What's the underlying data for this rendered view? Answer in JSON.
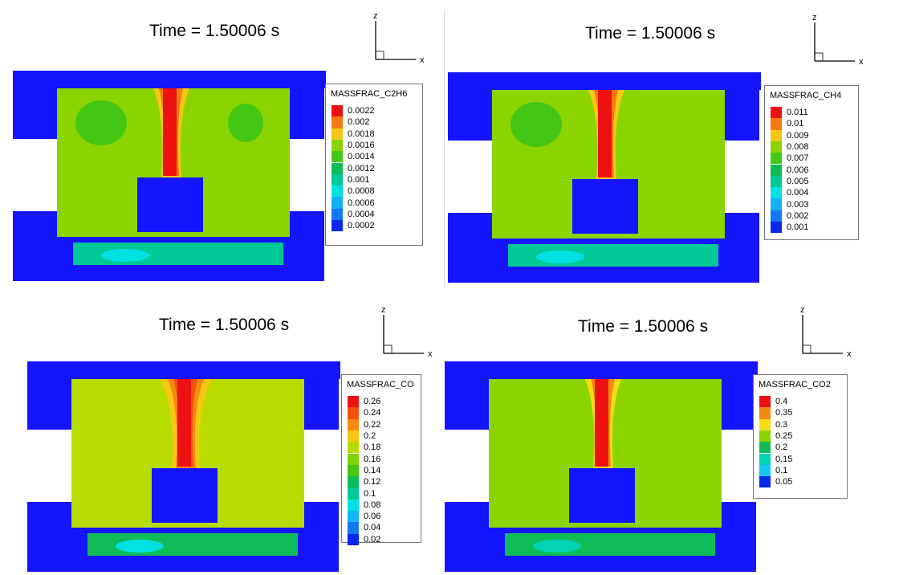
{
  "colors": {
    "solid": "#1414ff",
    "bg_green": "#7fdc00"
  },
  "chart_data": [
    {
      "type": "heatmap",
      "title": "Time = 1.50006 s",
      "legend_title": "MASSFRAC_C2H6",
      "levels": [
        "0.0022",
        "0.002",
        "0.0018",
        "0.0016",
        "0.0014",
        "0.0012",
        "0.001",
        "0.0008",
        "0.0006",
        "0.0004",
        "0.0002"
      ],
      "level_colors": [
        "#ee1111",
        "#f27a10",
        "#f6c814",
        "#8cd400",
        "#44c614",
        "#10bc58",
        "#00c896",
        "#00e2e2",
        "#14b0f4",
        "#1478f0",
        "#0a28ee"
      ],
      "axes": {
        "vertical": "z",
        "horizontal": "x"
      }
    },
    {
      "type": "heatmap",
      "title": "Time = 1.50006 s",
      "legend_title": "MASSFRAC_CH4",
      "levels": [
        "0.011",
        "0.01",
        "0.009",
        "0.008",
        "0.007",
        "0.006",
        "0.005",
        "0.004",
        "0.003",
        "0.002",
        "0.001"
      ],
      "level_colors": [
        "#ee1111",
        "#f27a10",
        "#f6c814",
        "#8cd400",
        "#44c614",
        "#10bc58",
        "#00c896",
        "#00e2e2",
        "#14b0f4",
        "#1478f0",
        "#0a28ee"
      ],
      "axes": {
        "vertical": "z",
        "horizontal": "x"
      }
    },
    {
      "type": "heatmap",
      "title": "Time = 1.50006 s",
      "legend_title": "MASSFRAC_CO",
      "levels": [
        "0.26",
        "0.24",
        "0.22",
        "0.2",
        "0.18",
        "0.16",
        "0.14",
        "0.12",
        "0.1",
        "0.08",
        "0.06",
        "0.04",
        "0.02"
      ],
      "level_colors": [
        "#ee1111",
        "#f25210",
        "#f68a10",
        "#f6c814",
        "#b8dc00",
        "#7cd400",
        "#44c614",
        "#10bc58",
        "#00c896",
        "#00e2e2",
        "#14b8f4",
        "#1478f0",
        "#0a28ee"
      ],
      "axes": {
        "vertical": "z",
        "horizontal": "x"
      }
    },
    {
      "type": "heatmap",
      "title": "Time = 1.50006 s",
      "legend_title": "MASSFRAC_CO2",
      "levels": [
        "0.4",
        "0.35",
        "0.3",
        "0.25",
        "0.2",
        "0.15",
        "0.1",
        "0.05"
      ],
      "level_colors": [
        "#ee1111",
        "#f28a10",
        "#f6dc14",
        "#8cd400",
        "#10bc58",
        "#00d2b4",
        "#14c8f4",
        "#0a28ee"
      ],
      "axes": {
        "vertical": "z",
        "horizontal": "x"
      }
    }
  ]
}
